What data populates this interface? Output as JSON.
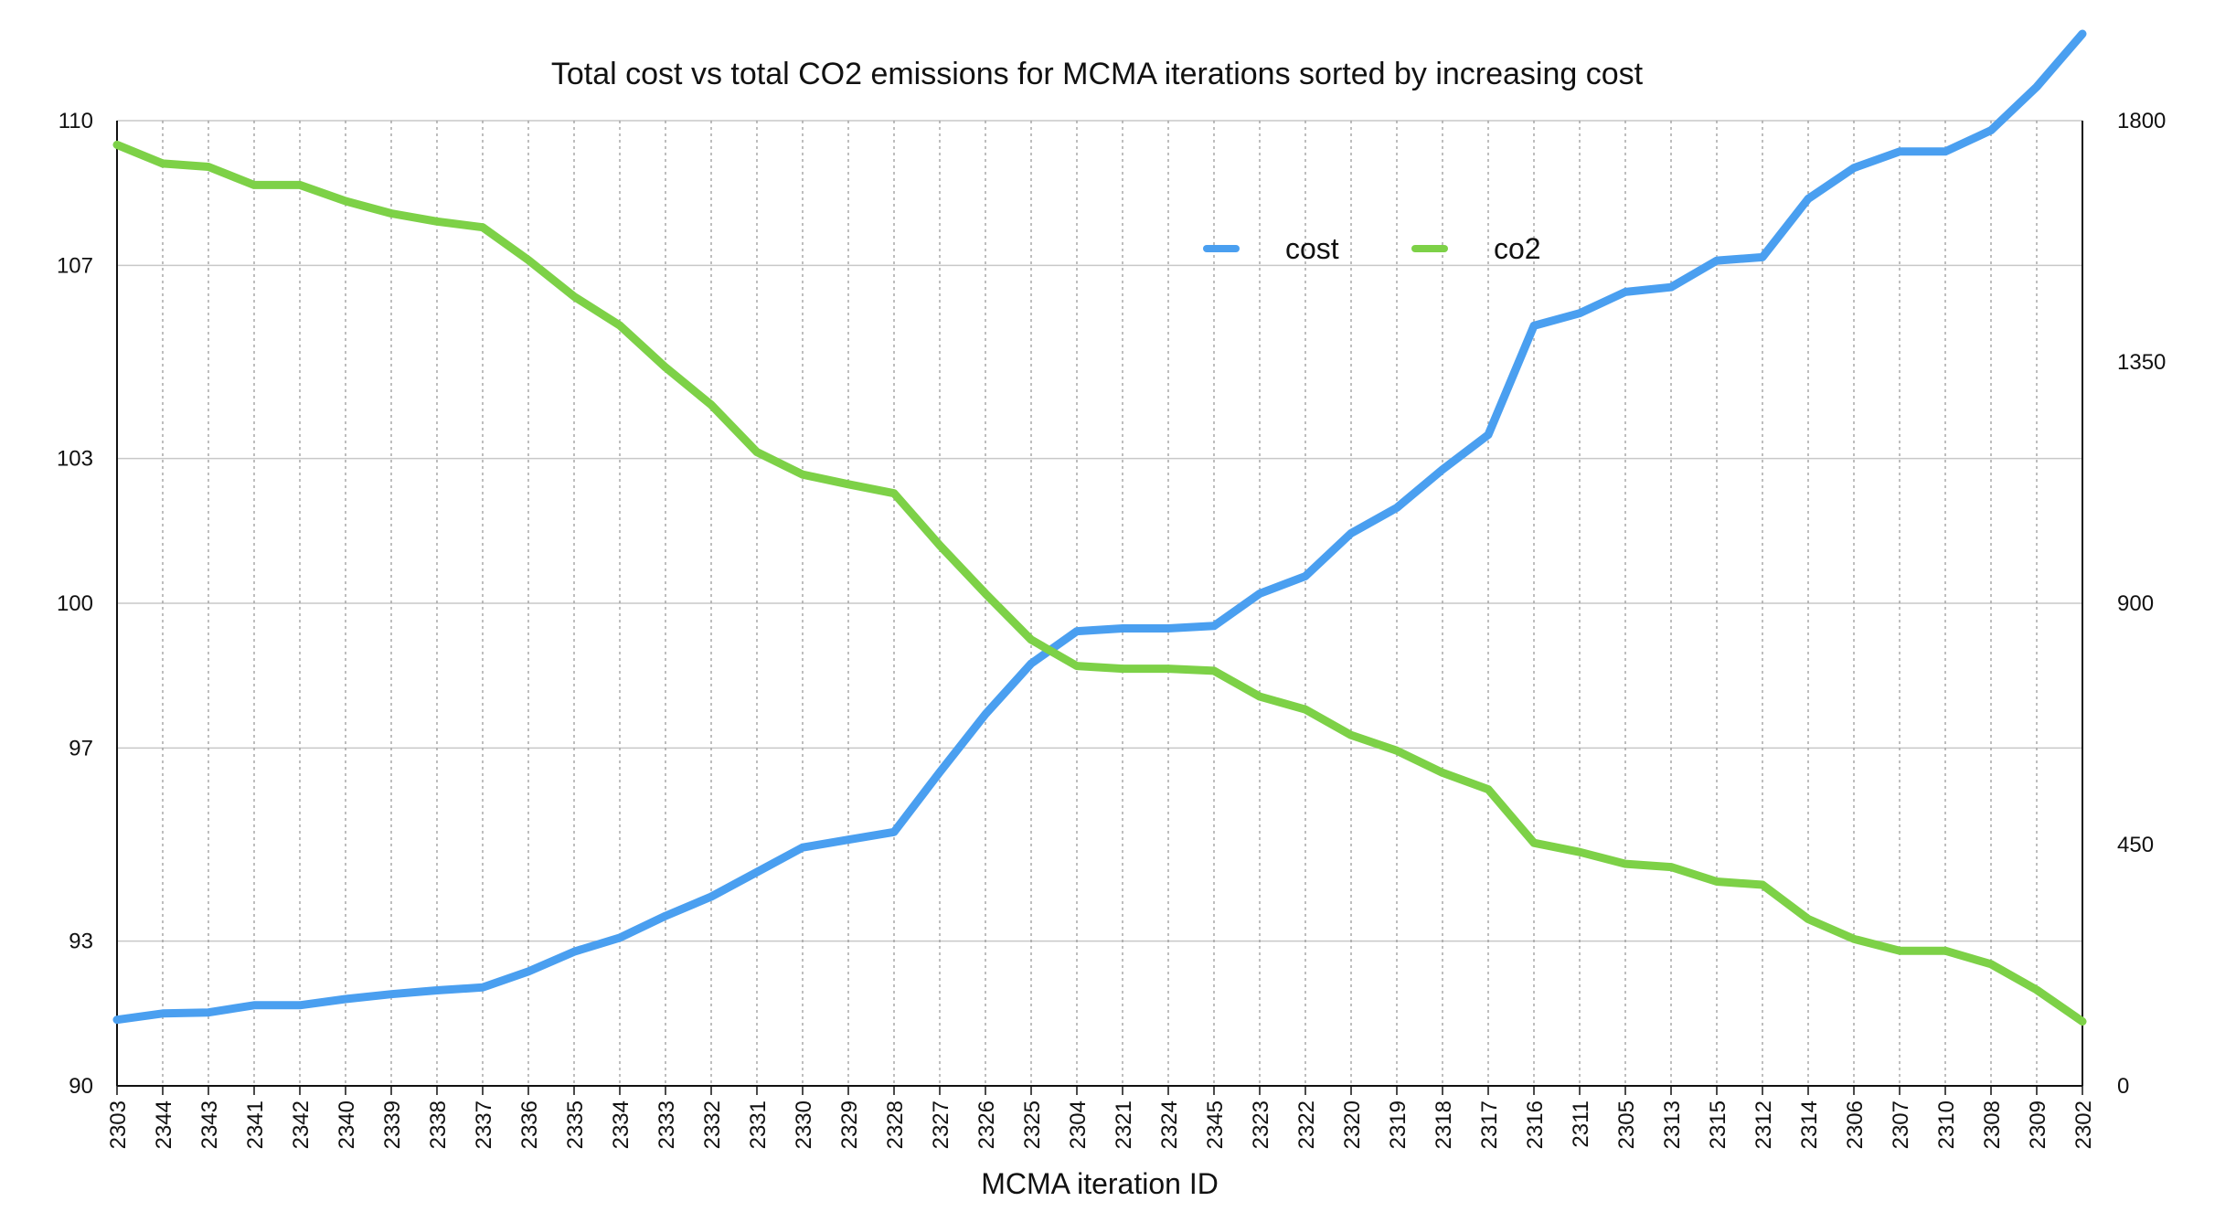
{
  "chart_data": {
    "type": "line",
    "title": "Total cost vs total CO2 emissions for MCMA iterations sorted by increasing cost",
    "xlabel": "MCMA iteration ID",
    "ylabel_left": "",
    "ylabel_right": "",
    "categories": [
      "2303",
      "2344",
      "2343",
      "2341",
      "2342",
      "2340",
      "2339",
      "2338",
      "2337",
      "2336",
      "2335",
      "2334",
      "2333",
      "2332",
      "2331",
      "2330",
      "2329",
      "2328",
      "2327",
      "2326",
      "2325",
      "2304",
      "2321",
      "2324",
      "2345",
      "2323",
      "2322",
      "2320",
      "2319",
      "2318",
      "2317",
      "2316",
      "2311",
      "2305",
      "2313",
      "2315",
      "2312",
      "2314",
      "2306",
      "2307",
      "2310",
      "2308",
      "2309",
      "2302"
    ],
    "y_left": {
      "ylim": [
        90,
        110
      ],
      "ticks": [
        90,
        93,
        97,
        100,
        103,
        107,
        110
      ]
    },
    "y_right": {
      "ylim": [
        0,
        1800
      ],
      "ticks": [
        0,
        450,
        900,
        1350,
        1800
      ]
    },
    "grid": true,
    "legend_position": "top-center",
    "series": [
      {
        "name": "cost",
        "axis": "left",
        "color": "#4a9ff0",
        "values": [
          91.37,
          91.5,
          91.52,
          91.67,
          91.67,
          91.8,
          91.9,
          91.98,
          92.04,
          92.37,
          92.78,
          93.07,
          93.52,
          93.92,
          94.43,
          94.94,
          95.1,
          95.26,
          96.5,
          97.7,
          98.75,
          99.42,
          99.48,
          99.48,
          99.53,
          100.2,
          100.56,
          101.45,
          101.98,
          102.77,
          103.49,
          105.75,
          106.01,
          106.45,
          106.55,
          107.1,
          107.17,
          108.38,
          109.02,
          109.36,
          109.36,
          109.8,
          110.7,
          111.8
        ]
      },
      {
        "name": "co2",
        "axis": "right",
        "color": "#7dd147",
        "values": [
          1755,
          1720,
          1714,
          1680,
          1680,
          1650,
          1627,
          1612,
          1601,
          1540,
          1472,
          1418,
          1340,
          1270,
          1182,
          1140,
          1122,
          1105,
          1008,
          918,
          832,
          783,
          778,
          778,
          774,
          726,
          702,
          654,
          625,
          584,
          553,
          453,
          436,
          414,
          408,
          381,
          375,
          311,
          274,
          252,
          252,
          227,
          179,
          120
        ]
      }
    ]
  }
}
